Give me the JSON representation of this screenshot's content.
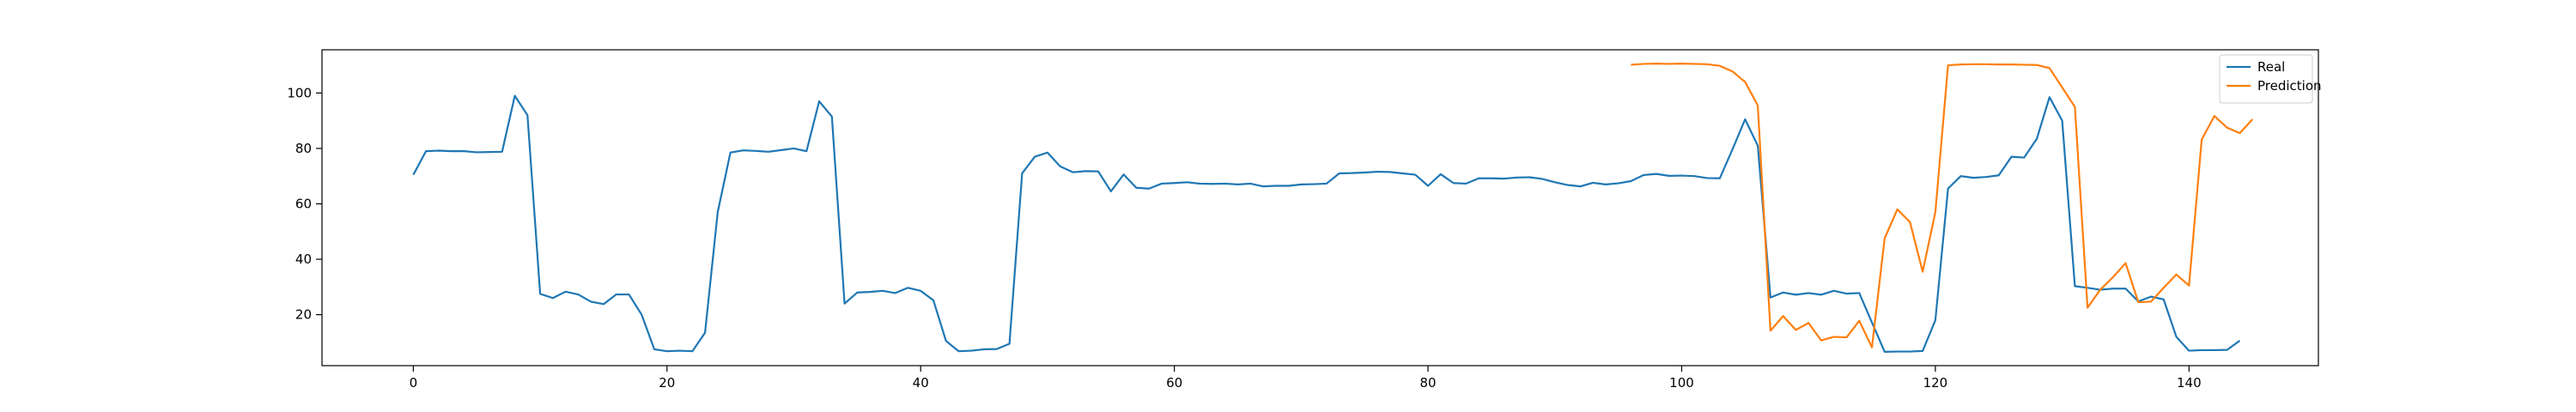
{
  "chart_data": {
    "type": "line",
    "title": "",
    "xlabel": "",
    "ylabel": "",
    "xlim": [
      -7.2,
      150.2
    ],
    "ylim": [
      1.6,
      115.6
    ],
    "xticks": [
      0,
      20,
      40,
      60,
      80,
      100,
      120,
      140
    ],
    "yticks": [
      20,
      40,
      60,
      80,
      100
    ],
    "grid": false,
    "legend": {
      "position": "top-right",
      "entries": [
        {
          "label": "Real",
          "color": "#1f77b4"
        },
        {
          "label": "Prediction",
          "color": "#ff7f0e"
        }
      ]
    },
    "series": [
      {
        "name": "Real",
        "color": "#1f77b4",
        "x_start": 0,
        "values": [
          70.5,
          79.0,
          79.2,
          79.0,
          79.0,
          78.6,
          78.7,
          78.8,
          99.0,
          92.0,
          27.5,
          26.0,
          28.3,
          27.3,
          24.7,
          23.8,
          27.3,
          27.3,
          20.0,
          7.5,
          6.8,
          7.0,
          6.8,
          13.5,
          57.0,
          78.5,
          79.3,
          79.1,
          78.8,
          79.4,
          80.0,
          79.0,
          97.0,
          91.5,
          24.0,
          28.0,
          28.2,
          28.6,
          27.8,
          29.7,
          28.6,
          25.2,
          10.5,
          6.8,
          7.0,
          7.5,
          7.6,
          9.5,
          71.0,
          77.0,
          78.5,
          73.5,
          71.4,
          71.8,
          71.7,
          64.5,
          70.6,
          65.8,
          65.5,
          67.3,
          67.5,
          67.8,
          67.3,
          67.2,
          67.3,
          67.0,
          67.3,
          66.3,
          66.5,
          66.5,
          67.0,
          67.1,
          67.3,
          71.0,
          71.1,
          71.3,
          71.6,
          71.5,
          71.0,
          70.5,
          66.5,
          70.7,
          67.5,
          67.3,
          69.2,
          69.2,
          69.1,
          69.5,
          69.6,
          69.0,
          67.8,
          66.8,
          66.3,
          67.6,
          67.0,
          67.4,
          68.2,
          70.4,
          70.8,
          70.1,
          70.2,
          70.0,
          69.3,
          69.2,
          79.6,
          90.5,
          81.0,
          26.2,
          28.0,
          27.2,
          27.8,
          27.2,
          28.6,
          27.6,
          27.8,
          17.2,
          6.6,
          6.7,
          6.7,
          6.9,
          18.0,
          65.5,
          70.0,
          69.4,
          69.7,
          70.3,
          77.0,
          76.7,
          83.5,
          98.5,
          90.0,
          30.3,
          29.7,
          29.0,
          29.4,
          29.4,
          24.8,
          26.5,
          25.5,
          12.0,
          7.0,
          7.2,
          7.2,
          7.3,
          10.6
        ]
      },
      {
        "name": "Prediction",
        "color": "#ff7f0e",
        "x_start": 96,
        "values": [
          110.2,
          110.5,
          110.6,
          110.5,
          110.6,
          110.5,
          110.4,
          109.8,
          107.8,
          104.0,
          95.5,
          14.2,
          19.5,
          14.5,
          17.0,
          10.7,
          12.0,
          11.8,
          17.8,
          8.2,
          47.5,
          58.0,
          53.4,
          35.5,
          57.0,
          110.0,
          110.3,
          110.4,
          110.4,
          110.3,
          110.3,
          110.2,
          110.1,
          109.0,
          102.0,
          95.0,
          22.5,
          29.0,
          33.5,
          38.6,
          24.5,
          24.7,
          29.7,
          34.5,
          30.5,
          83.2,
          91.7,
          87.5,
          85.5,
          90.5
        ]
      }
    ]
  }
}
